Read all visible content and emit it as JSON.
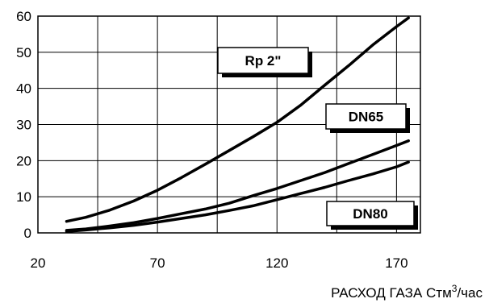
{
  "chart_data": {
    "type": "line",
    "xlabel_main": "РАСХОД ГАЗА Стм",
    "xlabel_sup": "3",
    "xlabel_tail": "/час",
    "ylabel": "",
    "xlim": [
      20,
      180
    ],
    "ylim": [
      0,
      60
    ],
    "x_ticks": [
      20,
      70,
      120,
      170
    ],
    "y_ticks": [
      0,
      10,
      20,
      30,
      40,
      50,
      60
    ],
    "grid": true,
    "series": [
      {
        "name": "Rp 2\"",
        "x": [
          32,
          40,
          50,
          60,
          70,
          80,
          90,
          100,
          110,
          120,
          130,
          140,
          150,
          160,
          170,
          175
        ],
        "y": [
          3.2,
          4.3,
          6.3,
          8.8,
          11.8,
          15.3,
          19.0,
          22.8,
          26.6,
          30.6,
          35.4,
          40.9,
          46.3,
          52.0,
          57.1,
          59.5
        ]
      },
      {
        "name": "DN65",
        "x": [
          32,
          40,
          50,
          60,
          70,
          80,
          90,
          100,
          110,
          120,
          130,
          140,
          150,
          160,
          170,
          175
        ],
        "y": [
          0.7,
          1.1,
          1.9,
          2.8,
          4.0,
          5.3,
          6.6,
          8.2,
          10.3,
          12.3,
          14.5,
          16.7,
          19.2,
          21.7,
          24.2,
          25.5
        ]
      },
      {
        "name": "DN80",
        "x": [
          32,
          40,
          50,
          60,
          70,
          80,
          90,
          100,
          110,
          120,
          130,
          140,
          150,
          160,
          170,
          175
        ],
        "y": [
          0.4,
          0.8,
          1.4,
          2.1,
          3.0,
          4.0,
          5.0,
          6.2,
          7.5,
          9.2,
          10.9,
          12.6,
          14.5,
          16.3,
          18.3,
          19.6
        ]
      }
    ],
    "tags": [
      "Rp 2\"",
      "DN65",
      "DN80"
    ]
  }
}
